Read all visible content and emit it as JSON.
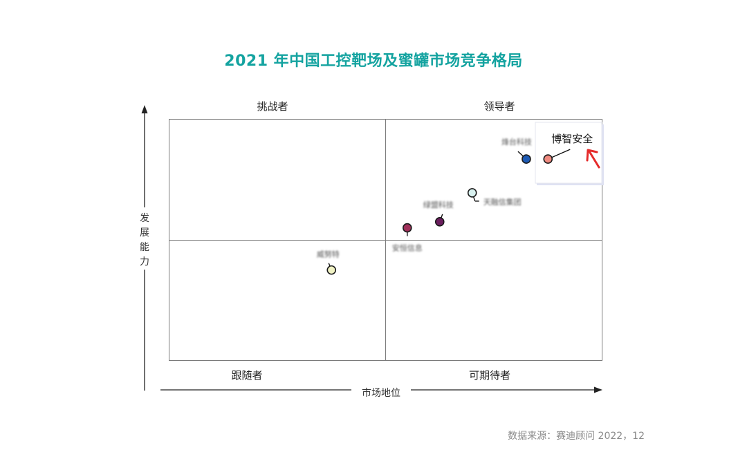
{
  "title": "2021 年中国工控靶场及蜜罐市场竞争格局",
  "source": "数据来源：赛迪顾问  2022，12",
  "chart_data": {
    "type": "scatter",
    "title": "2021 年中国工控靶场及蜜罐市场竞争格局",
    "xlabel": "市场地位",
    "ylabel": "发展能力",
    "quadrants": {
      "top_left": "挑战者",
      "top_right": "领导者",
      "bottom_left": "跟随者",
      "bottom_right": "可期待者"
    },
    "points": [
      {
        "name": "博智安全",
        "x": 87.5,
        "y": 83.5,
        "color": "#f08a80",
        "highlight": true,
        "blurred": false
      },
      {
        "name": "烽台科技",
        "x": 82.5,
        "y": 83.5,
        "color": "#1e5bb5",
        "highlight": false,
        "blurred": true
      },
      {
        "name": "天融信集团",
        "x": 70.0,
        "y": 69.5,
        "color": "#d8f1ef",
        "highlight": false,
        "blurred": true
      },
      {
        "name": "绿盟科技",
        "x": 62.5,
        "y": 57.5,
        "color": "#6b1e5e",
        "highlight": false,
        "blurred": true
      },
      {
        "name": "安恒信息",
        "x": 55.0,
        "y": 55.0,
        "color": "#a0305a",
        "highlight": false,
        "blurred": true
      },
      {
        "name": "威努特",
        "x": 37.5,
        "y": 37.5,
        "color": "#f0f2c4",
        "highlight": false,
        "blurred": true
      }
    ],
    "xlim": [
      0,
      100
    ],
    "ylim": [
      0,
      100
    ]
  }
}
